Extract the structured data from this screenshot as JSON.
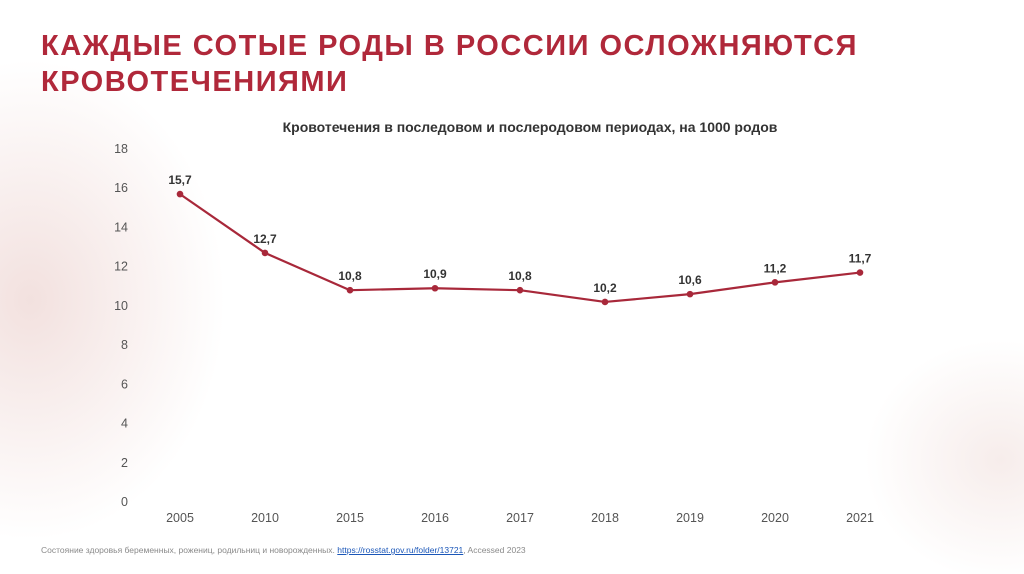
{
  "slide": {
    "title": "КАЖДЫЕ СОТЫЕ РОДЫ В РОССИИ ОСЛОЖНЯЮТСЯ КРОВОТЕЧЕНИЯМИ"
  },
  "source": {
    "text": "Состояние здоровья беременных, рожениц, родильниц и новорожденных.",
    "link": "https://rosstat.gov.ru/folder/13721",
    "suffix": ", Accessed 2023"
  },
  "chart_data": {
    "type": "line",
    "title": "Кровотечения в последовом и послеродовом периодах, на 1000 родов",
    "categories": [
      "2005",
      "2010",
      "2015",
      "2016",
      "2017",
      "2018",
      "2019",
      "2020",
      "2021"
    ],
    "series": [
      {
        "values": [
          15.7,
          12.7,
          10.8,
          10.9,
          10.8,
          10.2,
          10.6,
          11.2,
          11.7
        ],
        "labels": [
          "15,7",
          "12,7",
          "10,8",
          "10,9",
          "10,8",
          "10,2",
          "10,6",
          "11,2",
          "11,7"
        ]
      }
    ],
    "ylim": [
      0,
      18
    ],
    "yticks": [
      0,
      2,
      4,
      6,
      8,
      10,
      12,
      14,
      16,
      18
    ],
    "grid": false,
    "legend": "none",
    "line_color": "#a8283a"
  }
}
